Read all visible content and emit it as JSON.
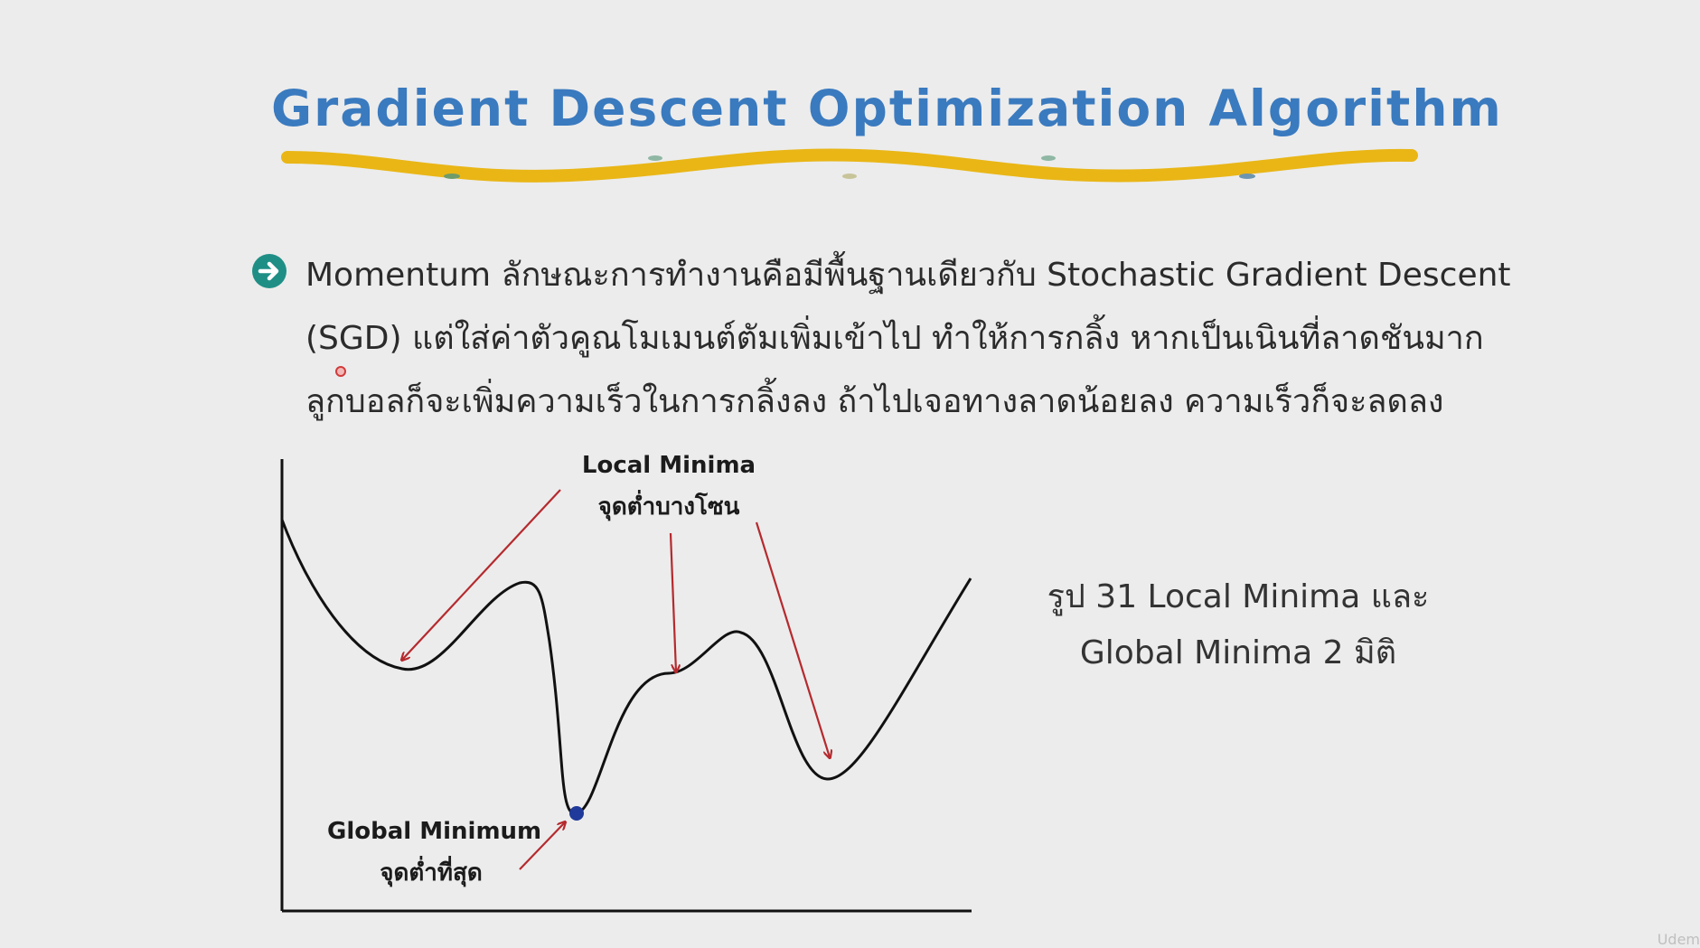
{
  "slide": {
    "title": "Gradient Descent Optimization Algorithm",
    "bullet_lines": [
      "Momentum ลักษณะการทำงานคือมีพื้นฐานเดียวกับ Stochastic Gradient Descent",
      "(SGD) แต่ใส่ค่าตัวคูณโมเมนต์ตัมเพิ่มเข้าไป ทำให้การกลิ้ง หากเป็นเนินที่ลาดชันมาก",
      "ลูกบอลก็จะเพิ่มความเร็วในการกลิ้งลง ถ้าไปเจอทางลาดน้อยลง ความเร็วก็จะลดลง"
    ],
    "caption_lines": [
      "รูป 31 Local Minima และ",
      "Global Minima 2 มิติ"
    ],
    "watermark": "Udem"
  },
  "diagram": {
    "local_minima_label": "Local Minima",
    "local_minima_label_th": "จุดต่ำบางโซน",
    "global_minimum_label": "Global Minimum",
    "global_minimum_label_th": "จุดต่ำที่สุด"
  },
  "colors": {
    "title": "#3a7abf",
    "wave": "#e9b616",
    "bullet_icon": "#1f8f86",
    "arrow": "#b52a2e",
    "curve": "#111111",
    "ball": "#1f3a9a"
  },
  "icons": {
    "bullet": "arrow-right-circle-icon"
  }
}
